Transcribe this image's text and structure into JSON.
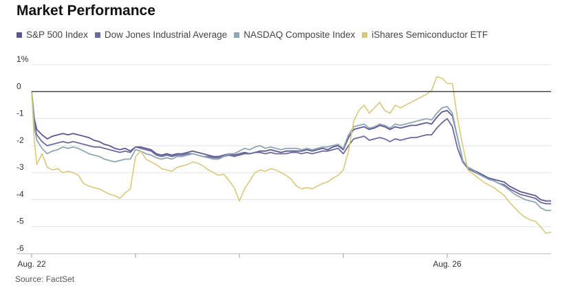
{
  "title": "Market Performance",
  "source": "Source: FactSet",
  "chart_data": {
    "type": "line",
    "title": "Market Performance",
    "xlabel": "",
    "ylabel": "",
    "ylim": [
      -6,
      1
    ],
    "y_ticks": [
      "1%",
      "0",
      "-1",
      "-2",
      "-3",
      "-4",
      "-5",
      "-6"
    ],
    "y_tick_values": [
      1,
      0,
      -1,
      -2,
      -3,
      -4,
      -5,
      -6
    ],
    "x_range": [
      0,
      100
    ],
    "x_ticks": [
      {
        "x": 0,
        "label": "Aug. 22"
      },
      {
        "x": 20,
        "label": ""
      },
      {
        "x": 40,
        "label": ""
      },
      {
        "x": 60,
        "label": ""
      },
      {
        "x": 80,
        "label": "Aug. 26"
      }
    ],
    "grid": true,
    "legend_position": "top-left",
    "series": [
      {
        "name": "S&P 500 Index",
        "color": "#5b5891",
        "x": [
          0,
          0.5,
          1,
          2,
          3,
          4,
          5,
          6,
          7,
          8,
          9,
          10,
          11,
          12,
          13,
          14,
          15,
          16,
          17,
          18,
          19,
          20,
          21,
          22,
          23,
          24,
          25,
          26,
          27,
          28,
          29,
          30,
          31,
          32,
          33,
          34,
          35,
          36,
          37,
          38,
          39,
          40,
          41,
          42,
          43,
          44,
          45,
          46,
          47,
          48,
          49,
          50,
          51,
          52,
          53,
          54,
          55,
          56,
          57,
          58,
          59,
          60,
          61,
          62,
          63,
          64,
          65,
          66,
          67,
          68,
          69,
          70,
          71,
          72,
          73,
          74,
          75,
          76,
          77,
          78,
          79,
          80,
          81,
          82,
          83,
          84,
          85,
          86,
          87,
          88,
          89,
          90,
          91,
          92,
          93,
          94,
          95,
          96,
          97,
          98,
          99,
          100
        ],
        "values": [
          0.0,
          -1.0,
          -1.4,
          -1.6,
          -1.75,
          -1.65,
          -1.6,
          -1.55,
          -1.6,
          -1.55,
          -1.6,
          -1.65,
          -1.7,
          -1.8,
          -1.85,
          -1.95,
          -2.0,
          -2.1,
          -2.15,
          -2.1,
          -2.2,
          -2.05,
          -2.05,
          -2.1,
          -2.15,
          -2.3,
          -2.35,
          -2.3,
          -2.35,
          -2.3,
          -2.3,
          -2.25,
          -2.2,
          -2.25,
          -2.3,
          -2.35,
          -2.4,
          -2.4,
          -2.35,
          -2.3,
          -2.35,
          -2.3,
          -2.25,
          -2.3,
          -2.25,
          -2.2,
          -2.2,
          -2.15,
          -2.2,
          -2.25,
          -2.2,
          -2.2,
          -2.2,
          -2.2,
          -2.15,
          -2.2,
          -2.15,
          -2.1,
          -2.15,
          -2.05,
          -2.0,
          -2.15,
          -1.7,
          -1.4,
          -1.35,
          -1.3,
          -1.4,
          -1.35,
          -1.25,
          -1.3,
          -1.4,
          -1.3,
          -1.35,
          -1.3,
          -1.25,
          -1.25,
          -1.2,
          -1.15,
          -1.2,
          -0.95,
          -0.75,
          -0.7,
          -0.9,
          -1.7,
          -2.55,
          -2.8,
          -2.9,
          -3.0,
          -3.1,
          -3.2,
          -3.25,
          -3.3,
          -3.35,
          -3.5,
          -3.6,
          -3.7,
          -3.75,
          -3.8,
          -3.85,
          -4.0,
          -4.05,
          -4.05
        ],
        "dash": [
          0,
          0.5,
          1,
          2,
          3,
          4,
          5,
          6,
          7,
          8,
          9,
          10,
          11,
          12,
          13,
          14,
          15,
          16,
          17,
          18,
          19,
          20,
          21,
          22,
          23,
          24,
          25,
          26,
          27,
          28,
          29,
          30,
          31,
          32,
          33,
          34,
          35,
          36,
          37,
          38,
          39,
          40,
          41,
          42,
          43,
          44,
          45,
          46,
          47,
          48,
          49,
          50,
          51,
          52,
          53,
          54,
          55,
          56,
          57,
          58,
          59,
          60,
          61,
          62,
          63,
          64,
          65,
          66,
          67,
          68,
          69,
          70,
          71,
          72,
          73,
          74,
          75,
          76,
          77,
          78,
          79,
          80,
          81,
          82,
          83,
          84,
          85,
          86,
          87,
          88,
          89,
          90,
          91,
          92,
          93,
          94,
          95,
          96,
          97,
          98,
          99,
          100
        ]
      },
      {
        "name": "Dow Jones Industrial Average",
        "color": "#6b6a9e",
        "x": [
          0,
          0.5,
          1,
          2,
          3,
          4,
          5,
          6,
          7,
          8,
          9,
          10,
          11,
          12,
          13,
          14,
          15,
          16,
          17,
          18,
          19,
          20,
          21,
          22,
          23,
          24,
          25,
          26,
          27,
          28,
          29,
          30,
          31,
          32,
          33,
          34,
          35,
          36,
          37,
          38,
          39,
          40,
          41,
          42,
          43,
          44,
          45,
          46,
          47,
          48,
          49,
          50,
          51,
          52,
          53,
          54,
          55,
          56,
          57,
          58,
          59,
          60,
          61,
          62,
          63,
          64,
          65,
          66,
          67,
          68,
          69,
          70,
          71,
          72,
          73,
          74,
          75,
          76,
          77,
          78,
          79,
          80,
          81,
          82,
          83,
          84,
          85,
          86,
          87,
          88,
          89,
          90,
          91,
          92,
          93,
          94,
          95,
          96,
          97,
          98,
          99,
          100
        ],
        "values": [
          0.0,
          -1.2,
          -1.6,
          -1.85,
          -2.0,
          -1.95,
          -1.9,
          -1.85,
          -1.9,
          -1.85,
          -1.9,
          -1.95,
          -2.0,
          -2.05,
          -2.05,
          -2.1,
          -2.15,
          -2.2,
          -2.25,
          -2.2,
          -2.25,
          -2.05,
          -2.1,
          -2.15,
          -2.2,
          -2.35,
          -2.4,
          -2.35,
          -2.4,
          -2.35,
          -2.35,
          -2.3,
          -2.3,
          -2.35,
          -2.4,
          -2.4,
          -2.45,
          -2.45,
          -2.4,
          -2.35,
          -2.4,
          -2.35,
          -2.3,
          -2.3,
          -2.25,
          -2.25,
          -2.3,
          -2.25,
          -2.3,
          -2.3,
          -2.3,
          -2.25,
          -2.25,
          -2.3,
          -2.25,
          -2.3,
          -2.25,
          -2.2,
          -2.2,
          -2.15,
          -2.1,
          -2.3,
          -2.0,
          -1.75,
          -1.7,
          -1.65,
          -1.8,
          -1.75,
          -1.7,
          -1.75,
          -1.85,
          -1.75,
          -1.8,
          -1.75,
          -1.7,
          -1.7,
          -1.65,
          -1.6,
          -1.6,
          -1.35,
          -1.15,
          -1.0,
          -1.3,
          -2.1,
          -2.6,
          -2.85,
          -2.95,
          -3.05,
          -3.15,
          -3.25,
          -3.3,
          -3.4,
          -3.45,
          -3.6,
          -3.7,
          -3.8,
          -3.85,
          -3.9,
          -3.95,
          -4.1,
          -4.15,
          -4.15
        ]
      },
      {
        "name": "NASDAQ Composite Index",
        "color": "#8fa7b3",
        "x": [
          0,
          0.5,
          1,
          2,
          3,
          4,
          5,
          6,
          7,
          8,
          9,
          10,
          11,
          12,
          13,
          14,
          15,
          16,
          17,
          18,
          19,
          20,
          21,
          22,
          23,
          24,
          25,
          26,
          27,
          28,
          29,
          30,
          31,
          32,
          33,
          34,
          35,
          36,
          37,
          38,
          39,
          40,
          41,
          42,
          43,
          44,
          45,
          46,
          47,
          48,
          49,
          50,
          51,
          52,
          53,
          54,
          55,
          56,
          57,
          58,
          59,
          60,
          61,
          62,
          63,
          64,
          65,
          66,
          67,
          68,
          69,
          70,
          71,
          72,
          73,
          74,
          75,
          76,
          77,
          78,
          79,
          80,
          81,
          82,
          83,
          84,
          85,
          86,
          87,
          88,
          89,
          90,
          91,
          92,
          93,
          94,
          95,
          96,
          97,
          98,
          99,
          100
        ],
        "values": [
          0.0,
          -1.3,
          -1.8,
          -2.1,
          -2.3,
          -2.2,
          -2.15,
          -2.05,
          -2.1,
          -2.05,
          -2.1,
          -2.2,
          -2.3,
          -2.35,
          -2.4,
          -2.5,
          -2.55,
          -2.6,
          -2.55,
          -2.5,
          -2.5,
          -2.15,
          -2.2,
          -2.3,
          -2.35,
          -2.45,
          -2.5,
          -2.45,
          -2.5,
          -2.4,
          -2.4,
          -2.35,
          -2.3,
          -2.35,
          -2.4,
          -2.45,
          -2.5,
          -2.5,
          -2.4,
          -2.3,
          -2.3,
          -2.2,
          -2.1,
          -2.15,
          -2.05,
          -2.0,
          -2.1,
          -2.05,
          -2.1,
          -2.15,
          -2.1,
          -2.1,
          -2.1,
          -2.15,
          -2.1,
          -2.15,
          -2.1,
          -2.05,
          -2.05,
          -2.0,
          -1.95,
          -2.1,
          -1.6,
          -1.3,
          -1.25,
          -1.2,
          -1.35,
          -1.3,
          -1.2,
          -1.25,
          -1.35,
          -1.2,
          -1.25,
          -1.2,
          -1.15,
          -1.1,
          -1.05,
          -1.0,
          -1.05,
          -0.8,
          -0.6,
          -0.55,
          -0.8,
          -1.7,
          -2.55,
          -2.8,
          -2.9,
          -3.05,
          -3.15,
          -3.25,
          -3.3,
          -3.4,
          -3.5,
          -3.65,
          -3.8,
          -3.9,
          -4.0,
          -4.05,
          -4.1,
          -4.3,
          -4.4,
          -4.4
        ]
      },
      {
        "name": "iShares Semiconductor ETF",
        "color": "#d8c97a",
        "x": [
          0,
          0.5,
          1,
          2,
          3,
          4,
          5,
          6,
          7,
          8,
          9,
          10,
          11,
          12,
          13,
          14,
          15,
          16,
          17,
          18,
          19,
          20,
          21,
          22,
          23,
          24,
          25,
          26,
          27,
          28,
          29,
          30,
          31,
          32,
          33,
          34,
          35,
          36,
          37,
          38,
          39,
          40,
          41,
          42,
          43,
          44,
          45,
          46,
          47,
          48,
          49,
          50,
          51,
          52,
          53,
          54,
          55,
          56,
          57,
          58,
          59,
          60,
          61,
          62,
          63,
          64,
          65,
          66,
          67,
          68,
          69,
          70,
          71,
          72,
          73,
          74,
          75,
          76,
          77,
          78,
          79,
          80,
          81,
          82,
          83,
          84,
          85,
          86,
          87,
          88,
          89,
          90,
          91,
          92,
          93,
          94,
          95,
          96,
          97,
          98,
          99,
          100
        ],
        "values": [
          0.0,
          -1.8,
          -2.7,
          -2.3,
          -2.8,
          -2.9,
          -2.85,
          -3.0,
          -2.95,
          -3.0,
          -3.1,
          -3.4,
          -3.5,
          -3.55,
          -3.6,
          -3.7,
          -3.8,
          -3.85,
          -3.95,
          -3.75,
          -3.6,
          -2.4,
          -2.2,
          -2.5,
          -2.6,
          -2.7,
          -2.85,
          -2.9,
          -2.95,
          -2.8,
          -2.75,
          -2.7,
          -2.6,
          -2.65,
          -2.75,
          -2.9,
          -3.0,
          -3.1,
          -3.05,
          -3.3,
          -3.55,
          -4.05,
          -3.6,
          -3.3,
          -3.0,
          -2.9,
          -2.95,
          -2.85,
          -2.9,
          -3.0,
          -3.1,
          -3.25,
          -3.5,
          -3.6,
          -3.55,
          -3.6,
          -3.5,
          -3.4,
          -3.35,
          -3.2,
          -3.1,
          -2.9,
          -2.2,
          -1.1,
          -0.7,
          -0.5,
          -0.8,
          -0.6,
          -0.4,
          -0.7,
          -0.8,
          -0.5,
          -0.6,
          -0.5,
          -0.4,
          -0.3,
          -0.2,
          -0.1,
          0.05,
          0.55,
          0.5,
          0.3,
          0.3,
          -1.0,
          -2.0,
          -2.9,
          -3.05,
          -3.2,
          -3.35,
          -3.45,
          -3.55,
          -3.7,
          -3.85,
          -4.1,
          -4.3,
          -4.5,
          -4.65,
          -4.75,
          -4.8,
          -5.0,
          -5.25,
          -5.2
        ]
      }
    ]
  }
}
